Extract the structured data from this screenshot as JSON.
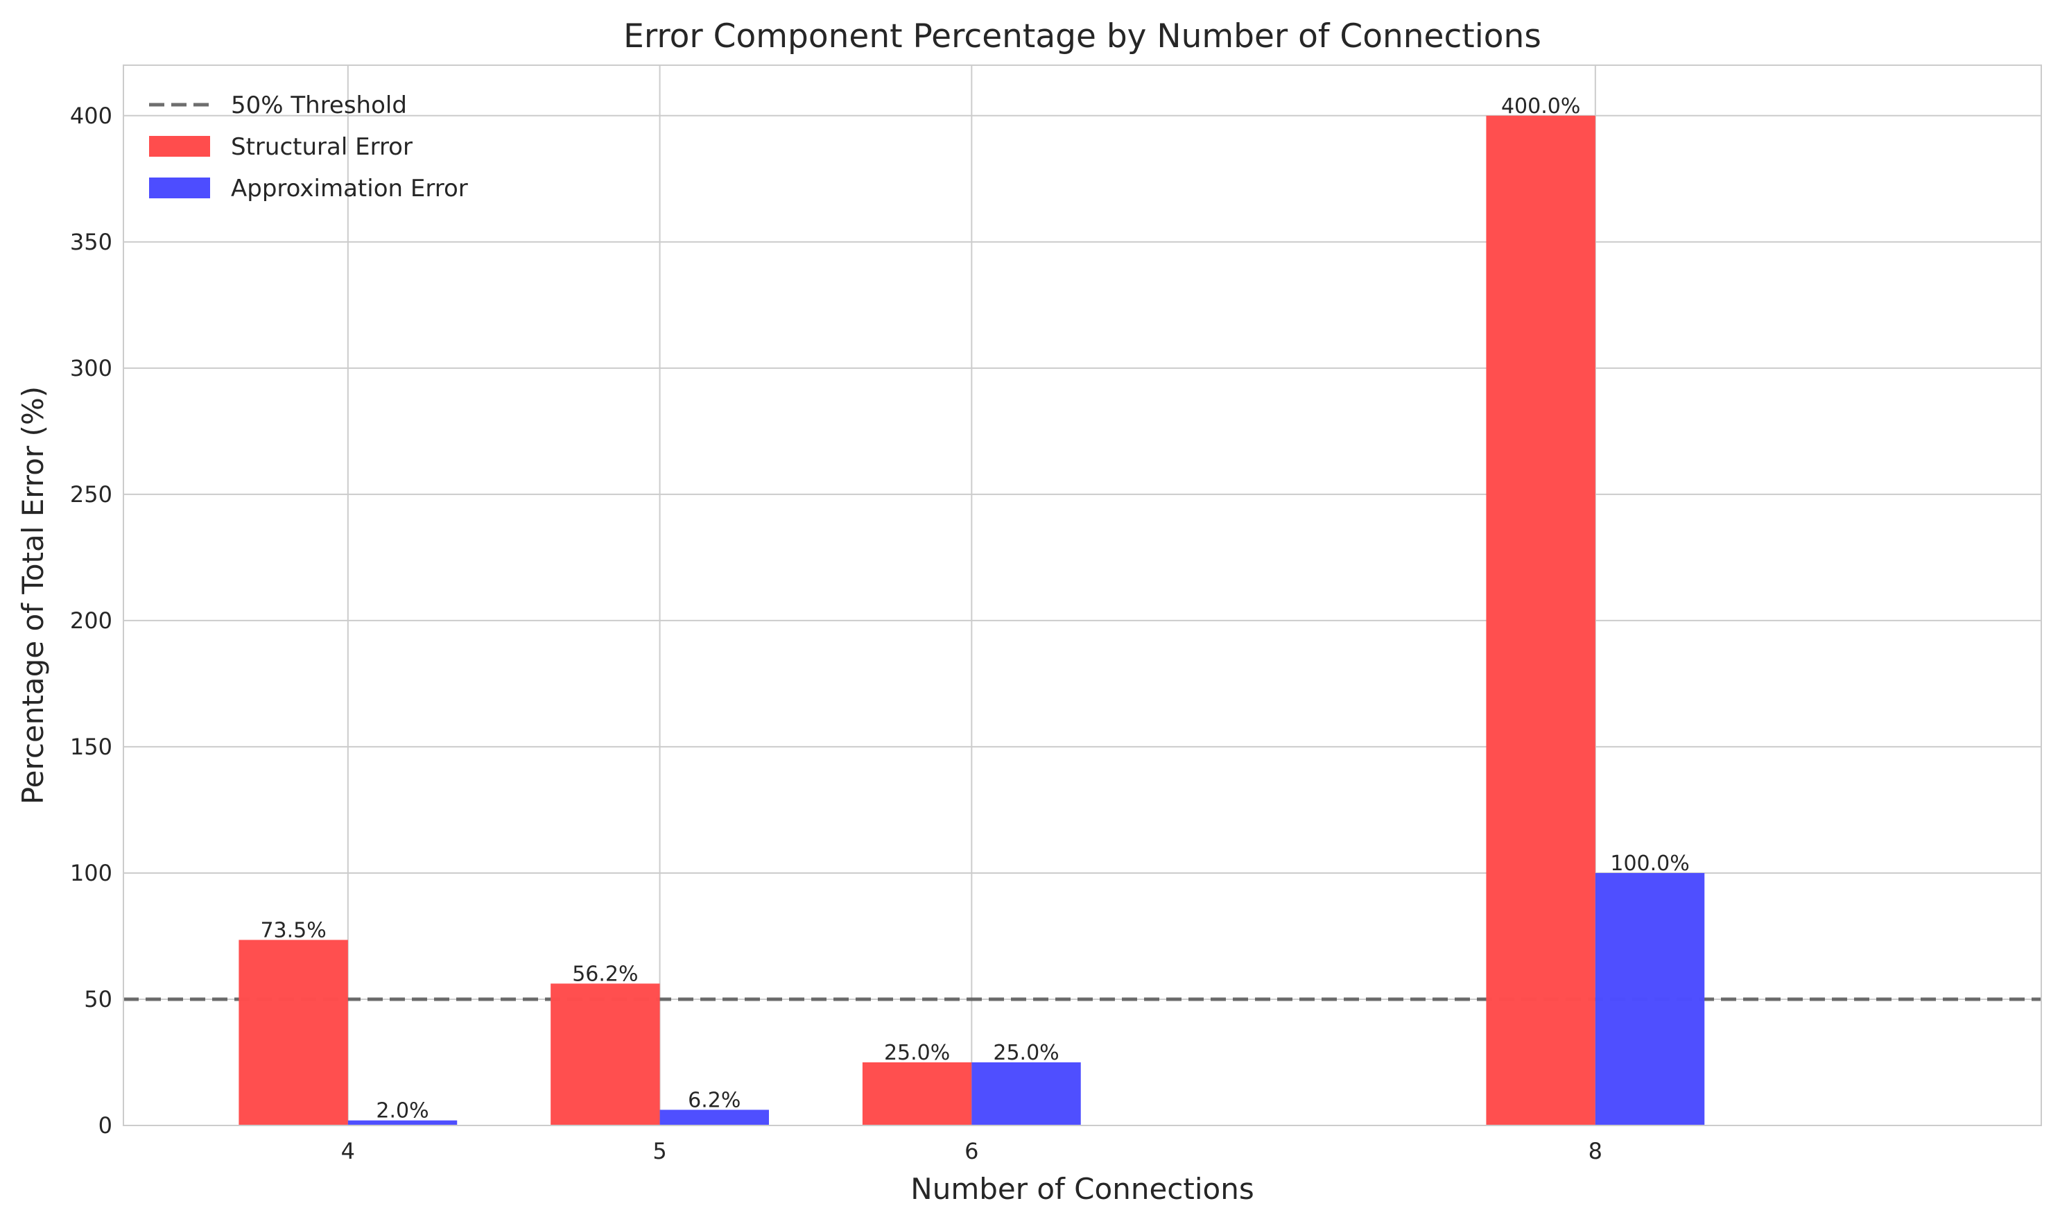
{
  "chart_data": {
    "type": "bar",
    "title": "Error Component Percentage by Number of Connections",
    "xlabel": "Number of Connections",
    "ylabel": "Percentage of Total Error (%)",
    "categories": [
      "4",
      "5",
      "6",
      "8"
    ],
    "series": [
      {
        "name": "Structural Error",
        "values": [
          73.5,
          56.2,
          25.0,
          400.0
        ],
        "labels": [
          "73.5%",
          "56.2%",
          "25.0%",
          "400.0%"
        ],
        "color": "#ff4d4d"
      },
      {
        "name": "Approximation Error",
        "values": [
          2.0,
          6.2,
          25.0,
          100.0
        ],
        "labels": [
          "2.0%",
          "6.2%",
          "25.0%",
          "100.0%"
        ],
        "color": "#4d4dff"
      }
    ],
    "threshold": {
      "name": "50% Threshold",
      "value": 50,
      "color": "#555555",
      "style": "dashed"
    },
    "ylim": [
      0,
      420
    ],
    "yticks": [
      0,
      50,
      100,
      150,
      200,
      250,
      300,
      350,
      400
    ],
    "grid": true,
    "legend_position": "top-left"
  }
}
